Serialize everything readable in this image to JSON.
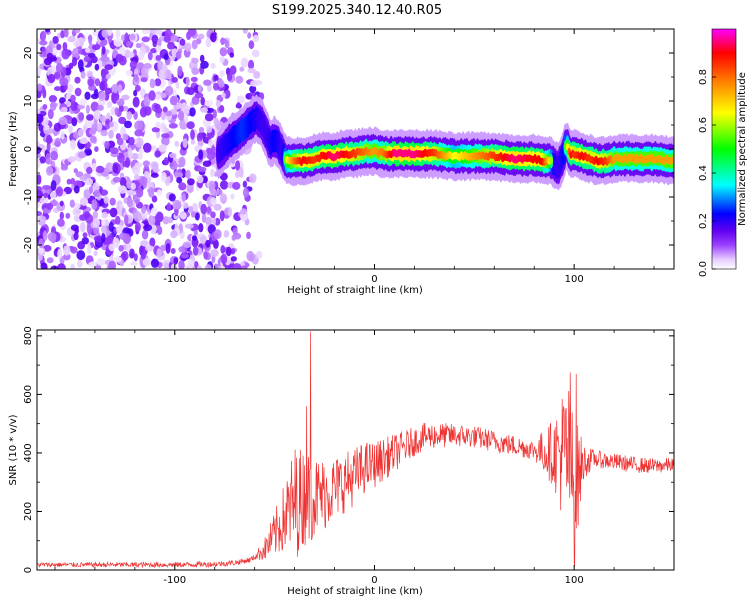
{
  "figure_title": "S199.2025.340.12.40.R05",
  "chart_data": [
    {
      "type": "heatmap",
      "title": "S199.2025.340.12.40.R05",
      "xlabel": "Height of straight line (km)",
      "ylabel": "Frequency (Hz)",
      "xlim": [
        -169,
        150
      ],
      "ylim": [
        -25,
        25
      ],
      "x_ticks": [
        -100,
        0,
        100
      ],
      "x_tick_labels": [
        "-100",
        "0",
        "100"
      ],
      "y_ticks": [
        -20,
        -10,
        0,
        10,
        20
      ],
      "y_tick_labels": [
        "-20",
        "-10",
        "0",
        "10",
        "20"
      ],
      "colorbar": {
        "label": "Normalized spectral amplitude",
        "range": [
          0,
          1
        ],
        "ticks": [
          0.0,
          0.2,
          0.4,
          0.6,
          0.8
        ],
        "tick_labels": [
          "0.0",
          "0.2",
          "0.4",
          "0.6",
          "0.8"
        ],
        "colormap": [
          "#ffffff",
          "#e6ccff",
          "#9a40ff",
          "#6000f0",
          "#0000ff",
          "#00ffff",
          "#00ff00",
          "#ffff00",
          "#ff8000",
          "#ff0000",
          "#ff00ff"
        ]
      },
      "noise_region": {
        "x_range": [
          -169,
          -62
        ],
        "f_range": [
          -25,
          25
        ]
      },
      "ridge": {
        "x": [
          -78,
          -74,
          -70,
          -66,
          -62,
          -59,
          -56,
          -54,
          -52,
          -50,
          -48,
          -46,
          -44,
          -40,
          -36,
          -30,
          -25,
          -20,
          -15,
          -10,
          -5,
          0,
          5,
          10,
          20,
          30,
          40,
          50,
          60,
          70,
          80,
          84,
          88,
          90,
          92,
          94,
          96,
          98,
          100,
          104,
          108,
          112,
          116,
          120,
          130,
          140,
          150
        ],
        "f": [
          -1,
          1,
          2.5,
          4,
          5.5,
          6.5,
          5,
          3,
          1,
          2,
          1,
          -1,
          -2.5,
          -2.5,
          -2.5,
          -2,
          -1.5,
          -1.5,
          -1,
          -1,
          -0.5,
          -0.5,
          -1,
          -1,
          -1,
          -1,
          -1.5,
          -1.5,
          -1.5,
          -2,
          -2,
          -2.5,
          -2.5,
          -3,
          -4,
          -2,
          1,
          -1,
          -1,
          -1.5,
          -2,
          -2.5,
          -2.5,
          -2,
          -2,
          -2,
          -2.5
        ],
        "amp": [
          0.3,
          0.35,
          0.4,
          0.45,
          0.4,
          0.35,
          0.3,
          0.3,
          0.35,
          0.4,
          0.35,
          0.3,
          0.6,
          0.75,
          0.85,
          0.8,
          0.85,
          0.9,
          0.85,
          0.8,
          0.75,
          0.7,
          0.75,
          0.9,
          0.9,
          0.8,
          0.6,
          0.7,
          0.8,
          0.9,
          0.85,
          0.85,
          0.6,
          0.35,
          0.3,
          0.35,
          0.5,
          0.85,
          0.8,
          0.85,
          0.8,
          0.85,
          0.8,
          0.7,
          0.7,
          0.7,
          0.7
        ]
      }
    },
    {
      "type": "line",
      "xlabel": "Height of straight line (km)",
      "ylabel": "SNR (10 * v/v)",
      "xlim": [
        -169,
        150
      ],
      "ylim": [
        0,
        820
      ],
      "x_ticks": [
        -100,
        0,
        100
      ],
      "x_tick_labels": [
        "-100",
        "0",
        "100"
      ],
      "y_ticks": [
        0,
        200,
        400,
        600,
        800
      ],
      "y_tick_labels": [
        "0",
        "200",
        "400",
        "600",
        "800"
      ],
      "color": "#ee3333",
      "envelope": {
        "x": [
          -169,
          -100,
          -80,
          -70,
          -62,
          -55,
          -50,
          -45,
          -40,
          -35,
          -30,
          -25,
          -20,
          -15,
          -10,
          -5,
          0,
          5,
          10,
          15,
          20,
          25,
          30,
          40,
          50,
          60,
          70,
          80,
          85,
          90,
          95,
          98,
          100,
          102,
          105,
          110,
          120,
          130,
          140,
          150
        ],
        "snr": [
          18,
          18,
          20,
          25,
          35,
          70,
          120,
          180,
          230,
          250,
          250,
          260,
          280,
          300,
          320,
          350,
          360,
          380,
          400,
          420,
          440,
          455,
          460,
          460,
          455,
          440,
          425,
          410,
          405,
          400,
          395,
          380,
          250,
          320,
          370,
          380,
          370,
          360,
          355,
          360
        ]
      },
      "noise_amplitude": {
        "x": [
          -169,
          -60,
          -55,
          -45,
          -40,
          -30,
          -20,
          -10,
          0,
          20,
          40,
          80,
          90,
          95,
          100,
          105,
          110,
          150
        ],
        "amp": [
          8,
          10,
          40,
          120,
          200,
          140,
          110,
          100,
          80,
          50,
          40,
          35,
          120,
          250,
          260,
          60,
          30,
          25
        ]
      },
      "spikes": [
        {
          "x": -32,
          "snr": 815
        },
        {
          "x": -34,
          "snr": 560
        },
        {
          "x": 98,
          "snr": 675
        },
        {
          "x": 101,
          "snr": 670
        },
        {
          "x": 100,
          "snr": 25
        }
      ]
    }
  ]
}
